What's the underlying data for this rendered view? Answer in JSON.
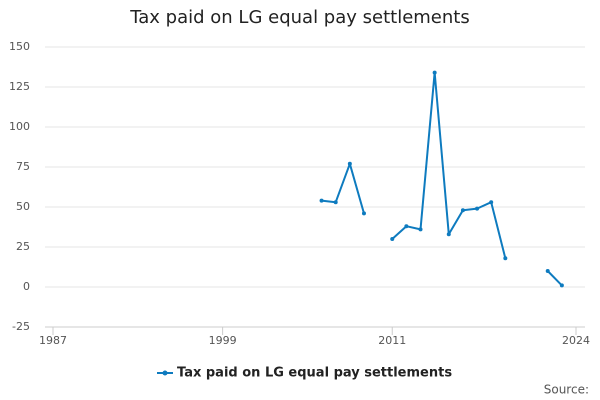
{
  "chart_data": {
    "type": "line",
    "title": "Tax paid on LG equal pay settlements",
    "x": [
      2006,
      2007,
      2008,
      2009,
      2010,
      2011,
      2012,
      2013,
      2014,
      2015,
      2016,
      2017,
      2018,
      2019,
      2020,
      2021,
      2022,
      2023
    ],
    "series": [
      {
        "name": "Tax paid on LG equal pay settlements",
        "color": "#0e7bbf",
        "values": [
          54,
          53,
          77,
          46,
          null,
          30,
          38,
          36,
          134,
          33,
          48,
          49,
          53,
          18,
          null,
          null,
          10,
          1
        ]
      }
    ],
    "xlim": [
      1987,
      2024
    ],
    "xticks": [
      1987,
      1999,
      2011,
      2024
    ],
    "ylim": [
      -25,
      150
    ],
    "yticks": [
      -25,
      0,
      25,
      50,
      75,
      100,
      125,
      150
    ],
    "grid": true,
    "legend": "bottom",
    "source": "Source:"
  }
}
